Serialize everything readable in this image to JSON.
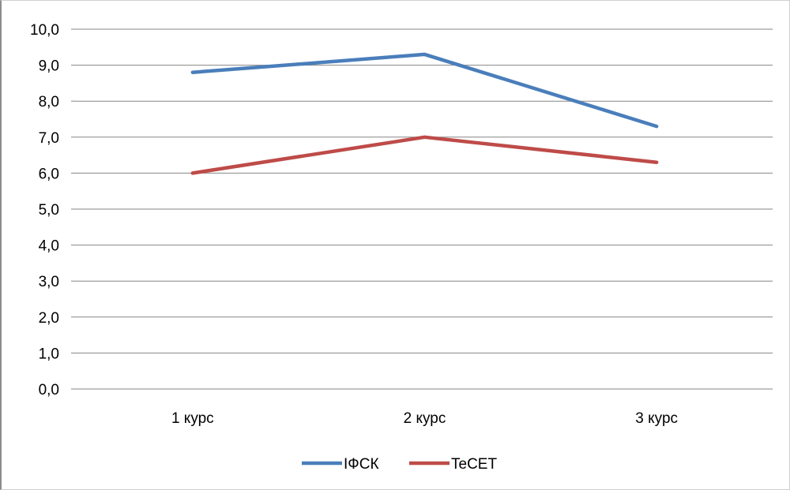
{
  "chart_data": {
    "type": "line",
    "categories": [
      "1 курс",
      "2 курс",
      "3 курс"
    ],
    "series": [
      {
        "name": "ІФСК",
        "values": [
          8.8,
          9.3,
          7.3
        ],
        "color": "#4a7ebb"
      },
      {
        "name": "TeCET",
        "values": [
          6.0,
          7.0,
          6.3
        ],
        "color": "#be4b48"
      }
    ],
    "y_ticks": [
      "0,0",
      "1,0",
      "2,0",
      "3,0",
      "4,0",
      "5,0",
      "6,0",
      "7,0",
      "8,0",
      "9,0",
      "10,0"
    ],
    "ylim": [
      0,
      10
    ],
    "grid": true,
    "gridline_color": "#868686",
    "legend_position": "bottom"
  }
}
